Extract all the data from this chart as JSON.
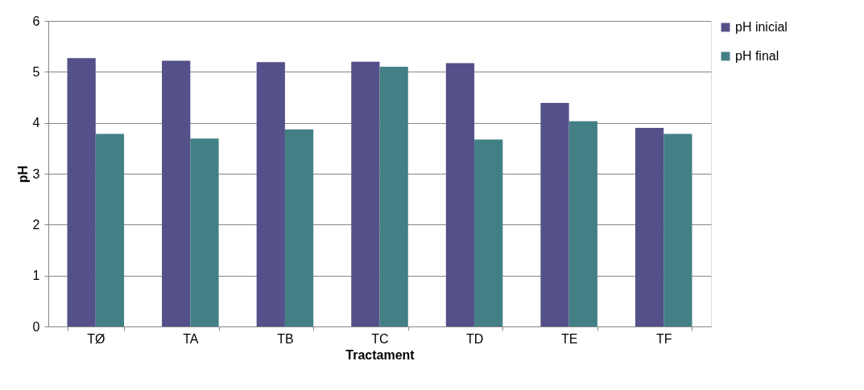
{
  "chart_data": {
    "type": "bar",
    "xlabel": "Tractament",
    "ylabel": "pH",
    "categories": [
      "TØ",
      "TA",
      "TB",
      "TC",
      "TD",
      "TE",
      "TF"
    ],
    "series": [
      {
        "name": "pH inicial",
        "color": "#545089",
        "values": [
          5.27,
          5.22,
          5.19,
          5.2,
          5.17,
          4.39,
          3.9
        ]
      },
      {
        "name": "pH final",
        "color": "#438085",
        "values": [
          3.78,
          3.69,
          3.87,
          5.1,
          3.67,
          4.03,
          3.78
        ]
      }
    ],
    "ylim": [
      0,
      6
    ],
    "yticks": [
      0,
      1,
      2,
      3,
      4,
      5,
      6
    ],
    "grid": "y",
    "legend": "right"
  }
}
